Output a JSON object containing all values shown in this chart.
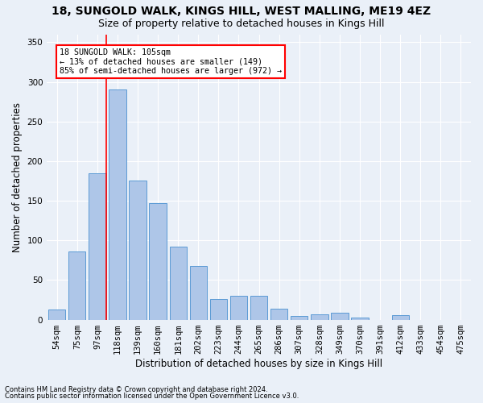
{
  "title1": "18, SUNGOLD WALK, KINGS HILL, WEST MALLING, ME19 4EZ",
  "title2": "Size of property relative to detached houses in Kings Hill",
  "xlabel": "Distribution of detached houses by size in Kings Hill",
  "ylabel": "Number of detached properties",
  "categories": [
    "54sqm",
    "75sqm",
    "97sqm",
    "118sqm",
    "139sqm",
    "160sqm",
    "181sqm",
    "202sqm",
    "223sqm",
    "244sqm",
    "265sqm",
    "286sqm",
    "307sqm",
    "328sqm",
    "349sqm",
    "370sqm",
    "391sqm",
    "412sqm",
    "433sqm",
    "454sqm",
    "475sqm"
  ],
  "values": [
    13,
    86,
    185,
    290,
    175,
    147,
    92,
    68,
    26,
    30,
    30,
    14,
    5,
    7,
    9,
    3,
    0,
    6,
    0,
    0,
    0
  ],
  "bar_color": "#aec6e8",
  "bar_edge_color": "#5b9bd5",
  "vline_color": "red",
  "annotation_text": "18 SUNGOLD WALK: 105sqm\n← 13% of detached houses are smaller (149)\n85% of semi-detached houses are larger (972) →",
  "annotation_box_color": "white",
  "annotation_box_edgecolor": "red",
  "footnote1": "Contains HM Land Registry data © Crown copyright and database right 2024.",
  "footnote2": "Contains public sector information licensed under the Open Government Licence v3.0.",
  "background_color": "#eaf0f8",
  "ylim": [
    0,
    360
  ],
  "yticks": [
    0,
    50,
    100,
    150,
    200,
    250,
    300,
    350
  ],
  "title_fontsize": 10,
  "subtitle_fontsize": 9,
  "axis_label_fontsize": 8.5,
  "tick_fontsize": 7.5,
  "footnote_fontsize": 6.0
}
